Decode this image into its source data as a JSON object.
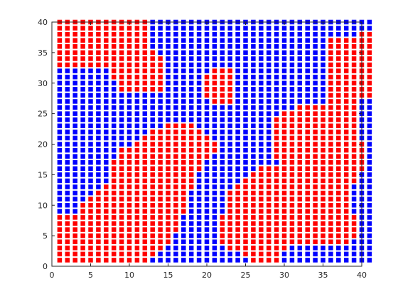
{
  "chart_data": {
    "type": "scatter",
    "title": "",
    "xlabel": "",
    "ylabel": "",
    "xlim": [
      0,
      40
    ],
    "ylim": [
      0,
      40
    ],
    "x_ticks": [
      0,
      5,
      10,
      15,
      20,
      25,
      30,
      35,
      40
    ],
    "y_ticks": [
      0,
      5,
      10,
      15,
      20,
      25,
      30,
      35,
      40
    ],
    "grid": false,
    "marker": "square",
    "colors": {
      "r": "#ff0000",
      "b": "#0000ff"
    },
    "x_start": 1,
    "y_top": 40,
    "rows": [
      "rrrrrrrrrrrrbbbbbbbbbbbbbbbbbbbbbbbbbbbbb",
      "rrrrrrrrrrrrbbbbbbbbbbbbbbbbbbbbbbbbbbbbb",
      "rrrrrrrrrrrrbbbbbbbbbbbbbbbbbbbbbbbbbbbrr",
      "rrrrrrrrrrrrbbbbbbbbbbbbbbbbbbbbbbbrrrrrr",
      "rrrrrrrrrrrrbbbbbbbbbbbbbbbbbbbbbbbrrrrrr",
      "rrrrrrrrrrrrrbbbbbbbbbbbbbbbbbbbbbbrrrrrr",
      "rrrrrrrrrrrrrrbbbbbbbbbbbbbbbbbbbbbrrrrrr",
      "rrrrrrrrrrrrrrbbbbbbbbbbbbbbbbbbbbbrrrrrr",
      "bbbbbbbrrrrrrrbbbbbbrrrbbbbbbbbbbbbrrrrrr",
      "bbbbbbbrrrrrrrbbbbbrrrrbbbbbbbbbbbbrrrrrr",
      "bbbbbbbbrrrrrrbbbbbrrrrbbbbbbbbbbbbrrrrrr",
      "bbbbbbbbrrrrrrbbbbbrrrrbbbbbbbbbbbbrrrrrr",
      "bbbbbbbbbbbbbbbbbbbrrrrbbbbbbbbbbbbrrrrrr",
      "bbbbbbbbbbbbbbbbbbbbrrrbbbbbbbbbbbbrrrrbb",
      "bbbbbbbbbbbbbbbbbbbbbbbbbbbbbbbrrrrrrrrbb",
      "bbbbbbbbbbbbbbbbbbbbbbbbbbbbbrrrrrrrrrrbb",
      "bbbbbbbbbbbbbbbbbbbbbbbbbbbbrrrrrrrrrrrbb",
      "bbbbbbbbbbbbbbrrrrbbbbbbbbbbrrrrrrrrrrrbb",
      "bbbbbbbbbbbbrrrrrrrbbbbbbbbbrrrrrrrrrrrbb",
      "bbbbbbbbbbbrrrrrrrrrbbbbbbbbrrrrrrrrrrrbb",
      "bbbbbbbbbbrrrrrrrrrrrbbbbbbbrrrrrrrrrrrrb",
      "bbbbbbbbrrrrrrrrrrrrrbbbbbbbrrrrrrrrrrrrb",
      "bbbbbbbbrrrrrrrrrrrrbbbbbbbbrrrrrrrrrrrrb",
      "bbbbbbbrrrrrrrrrrrrbbbbbbbbbbrrrrrrrrrrrb",
      "bbbbbbbrrrrrrrrrrrrbbbbbbbrrrrrrrrrrrrrrb",
      "bbbbbbbrrrrrrrrrrrbbbbbbbrrrrrrrrrrrrrrbb",
      "bbbbbbbrrrrrrrrrrrbbbbbbrrrrrrrrrrrrrrrbb",
      "bbbbbbrrrrrrrrrrrrbbbbbrrrrrrrrrrrrrrrbbb",
      "bbbbbrrrrrrrrrrrrbbbbbrrrrrrrrrrrrrrrrbbb",
      "bbbbrrrrrrrrrrrrrbbbbbrrrrrrrrrrrrrrrrbbb",
      "bbbrrrrrrrrrrrrrrbbbbbrrrrrrrrrrrrrrrrbbb",
      "bbbrrrrrrrrrrrrrrbbbbbrrrrrrrrrrrrrrrrbbb",
      "rrrrrrrrrrrrrrrrbbbbbrrrrrrrrrrrrrrrrrrbb",
      "rrrrrrrrrrrrrrrrbbbbbrrrrrrrrrrrrrrrrrrbb",
      "rrrrrrrrrrrrrrrrbbbbbrrrrrrrrrrrrrrrrrrbb",
      "rrrrrrrrrrrrrrrbbbbbbrrrrrrrrrrrrrrrrrrbb",
      "rrrrrrrrrrrrrrrbbbbbbrrrrrrrrrrrrrrrrrbbb",
      "rrrrrrrrrrrrrrbbbbbbbbrrrrrrrrbbbbbbbbbbb",
      "rrrrrrrrrrrrrbbbbbbbbbbbrrrrrbbbbbbbbbbbb",
      "rrrrrrrrrrrrbbbbbbbbbbbbbrrrrbbbbbbbbbbbb"
    ]
  }
}
